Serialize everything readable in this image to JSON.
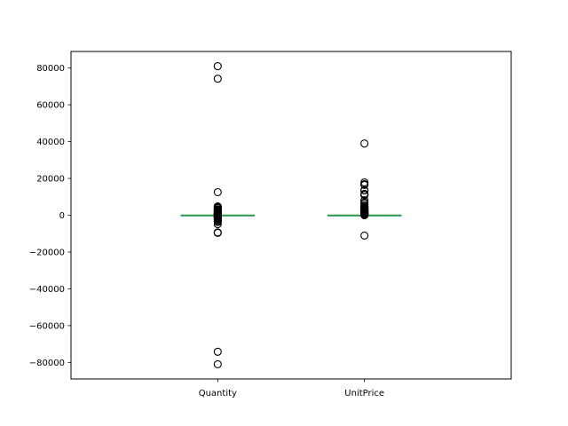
{
  "chart_data": {
    "type": "box",
    "title": "",
    "xlabel": "",
    "ylabel": "",
    "categories": [
      "Quantity",
      "UnitPrice"
    ],
    "ylim": [
      -89000,
      89000
    ],
    "yticks": [
      -80000,
      -60000,
      -40000,
      -20000,
      0,
      20000,
      40000,
      60000,
      80000
    ],
    "ytick_labels": [
      "−80000",
      "−60000",
      "−40000",
      "−20000",
      "0",
      "20000",
      "40000",
      "60000",
      "80000"
    ],
    "grid": false,
    "legend": "none",
    "series": [
      {
        "category": "Quantity",
        "box": {
          "whislo": -12,
          "q1": 1,
          "med": 3,
          "q3": 10,
          "whishi": 23
        },
        "outliers": [
          80995,
          74215,
          12540,
          4800,
          4300,
          3906,
          3186,
          3114,
          2880,
          2400,
          2000,
          1930,
          1600,
          1500,
          1200,
          1000,
          900,
          800,
          700,
          600,
          500,
          400,
          300,
          200,
          100,
          60,
          40,
          30,
          25,
          -30,
          -50,
          -100,
          -200,
          -400,
          -600,
          -800,
          -1000,
          -1200,
          -1500,
          -2000,
          -2500,
          -3100,
          -3667,
          -4830,
          -9360,
          -9600,
          -74215,
          -80995
        ]
      },
      {
        "category": "UnitPrice",
        "box": {
          "whislo": 0,
          "q1": 1.25,
          "med": 2.08,
          "q3": 4.13,
          "whishi": 8.45
        },
        "outliers": [
          38970,
          17836,
          16888,
          16453,
          13541,
          13474,
          11586,
          11062,
          10953,
          8142,
          6930,
          6500,
          5500,
          4800,
          4500,
          4287,
          4161,
          3800,
          3500,
          3155,
          2900,
          2653,
          2500,
          2382,
          2100,
          2000,
          1867,
          1715,
          1500,
          1300,
          1126,
          1000,
          900,
          800,
          700,
          600,
          500,
          400,
          300,
          200,
          150,
          100,
          50,
          20,
          -11062
        ]
      }
    ],
    "colors": {
      "box": "#1f77b4",
      "median": "#2ca02c",
      "outlier_edge": "#000000",
      "axes": "#000000"
    }
  }
}
